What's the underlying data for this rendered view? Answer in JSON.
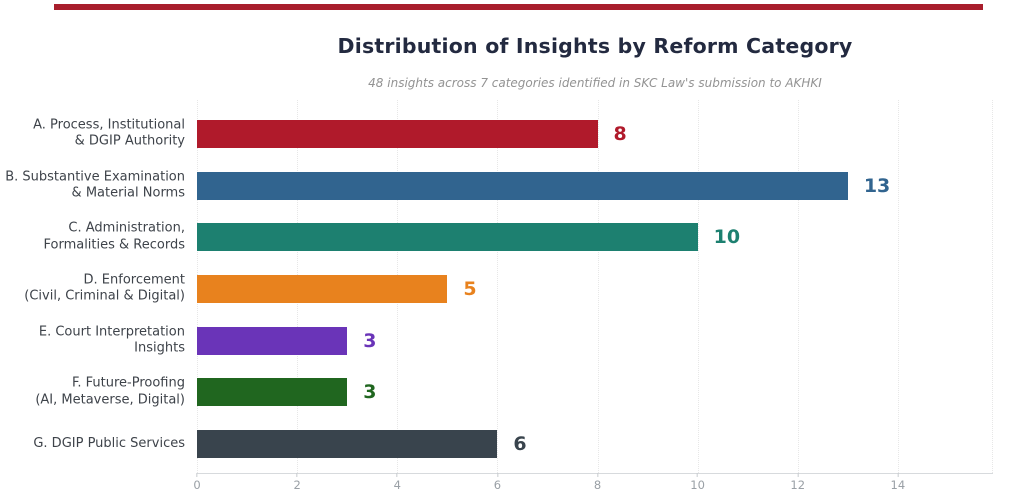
{
  "page": {
    "accent_rule_color": "#A81E2C"
  },
  "chart_data": {
    "type": "bar",
    "orientation": "horizontal",
    "title": "Distribution of Insights by Reform Category",
    "subtitle": "48 insights across 7 categories identified in SKC Law's submission to AKHKI",
    "categories": [
      [
        "A. Process, Institutional",
        "& DGIP Authority"
      ],
      [
        "B. Substantive Examination",
        "& Material Norms"
      ],
      [
        "C. Administration,",
        "Formalities & Records"
      ],
      [
        "D. Enforcement",
        "(Civil, Criminal & Digital)"
      ],
      [
        "E. Court Interpretation",
        "Insights"
      ],
      [
        "F. Future-Proofing",
        "(AI, Metaverse, Digital)"
      ],
      [
        "G. DGIP Public Services"
      ]
    ],
    "values": [
      8,
      13,
      10,
      5,
      3,
      3,
      6
    ],
    "bar_colors": [
      "#B01A2B",
      "#31648F",
      "#1D8070",
      "#E8821E",
      "#6A34B8",
      "#20661F",
      "#39444D"
    ],
    "value_labels_shown": true,
    "xlabel": "",
    "ylabel": "",
    "xlim": [
      0,
      15.9
    ],
    "x_ticks": [
      0,
      2,
      4,
      6,
      8,
      10,
      12,
      14
    ],
    "grid": "vertical-dotted",
    "legend": "none"
  }
}
